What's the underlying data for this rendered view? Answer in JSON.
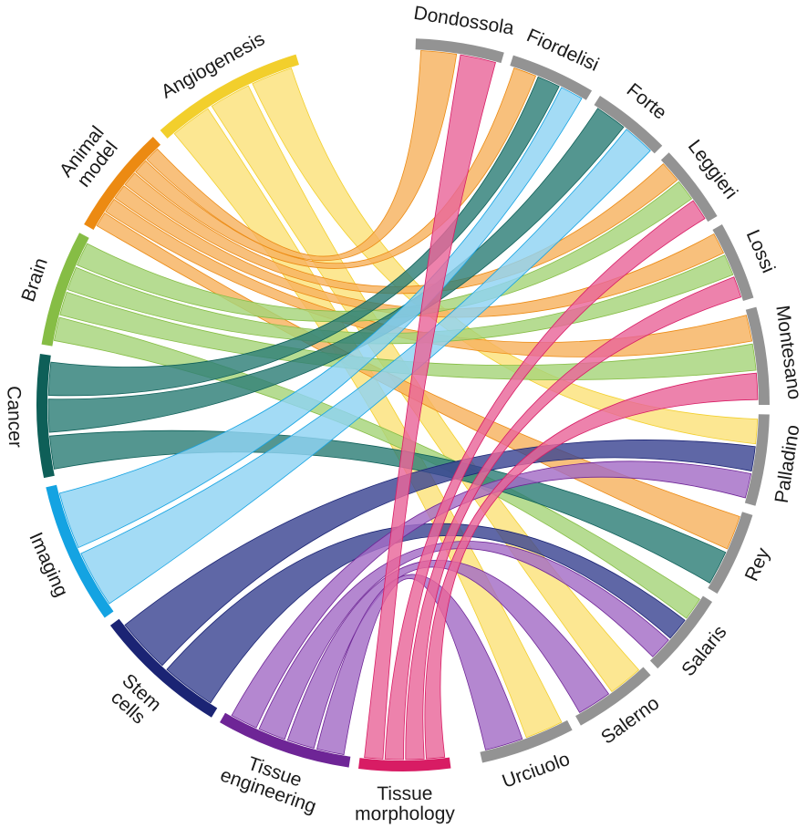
{
  "chart_data": {
    "type": "chord",
    "title": "",
    "topics": [
      {
        "id": "angio",
        "lines": [
          "Angiogenesis"
        ],
        "color": "#f2cf2c",
        "ribbon": "#fbe27a"
      },
      {
        "id": "animal",
        "lines": [
          "Animal",
          "model"
        ],
        "color": "#ec8a12",
        "ribbon": "#f6b25f"
      },
      {
        "id": "brain",
        "lines": [
          "Brain"
        ],
        "color": "#86bd45",
        "ribbon": "#a6d47a"
      },
      {
        "id": "cancer",
        "lines": [
          "Cancer"
        ],
        "color": "#0e5f58",
        "ribbon": "#2e7f77"
      },
      {
        "id": "imaging",
        "lines": [
          "Imaging"
        ],
        "color": "#14a3e2",
        "ribbon": "#8fd3f3"
      },
      {
        "id": "stem",
        "lines": [
          "Stem",
          "cells"
        ],
        "color": "#1b2474",
        "ribbon": "#3c4593"
      },
      {
        "id": "tissue_eng",
        "lines": [
          "Tissue",
          "engineering"
        ],
        "color": "#6e2596",
        "ribbon": "#a46cc6"
      },
      {
        "id": "tissue_morph",
        "lines": [
          "Tissue",
          "morphology"
        ],
        "color": "#d81c64",
        "ribbon": "#e9679a"
      }
    ],
    "authors": [
      "Dondossola",
      "Fiordelisi",
      "Forte",
      "Leggieri",
      "Lossi",
      "Montesano",
      "Palladino",
      "Rey",
      "Salaris",
      "Salerno",
      "Urciuolo"
    ],
    "author_color": "#939393",
    "links": [
      {
        "topic": "angio",
        "author": "Salerno"
      },
      {
        "topic": "angio",
        "author": "Urciuolo"
      },
      {
        "topic": "angio",
        "author": "Palladino"
      },
      {
        "topic": "animal",
        "author": "Dondossola"
      },
      {
        "topic": "animal",
        "author": "Fiordelisi"
      },
      {
        "topic": "animal",
        "author": "Leggieri"
      },
      {
        "topic": "animal",
        "author": "Lossi"
      },
      {
        "topic": "animal",
        "author": "Montesano"
      },
      {
        "topic": "animal",
        "author": "Rey"
      },
      {
        "topic": "brain",
        "author": "Leggieri"
      },
      {
        "topic": "brain",
        "author": "Lossi"
      },
      {
        "topic": "brain",
        "author": "Montesano"
      },
      {
        "topic": "brain",
        "author": "Salaris"
      },
      {
        "topic": "cancer",
        "author": "Fiordelisi"
      },
      {
        "topic": "cancer",
        "author": "Forte"
      },
      {
        "topic": "cancer",
        "author": "Rey"
      },
      {
        "topic": "imaging",
        "author": "Fiordelisi"
      },
      {
        "topic": "imaging",
        "author": "Forte"
      },
      {
        "topic": "stem",
        "author": "Palladino"
      },
      {
        "topic": "stem",
        "author": "Salaris"
      },
      {
        "topic": "tissue_eng",
        "author": "Palladino"
      },
      {
        "topic": "tissue_eng",
        "author": "Salaris"
      },
      {
        "topic": "tissue_eng",
        "author": "Salerno"
      },
      {
        "topic": "tissue_eng",
        "author": "Urciuolo"
      },
      {
        "topic": "tissue_morph",
        "author": "Dondossola"
      },
      {
        "topic": "tissue_morph",
        "author": "Leggieri"
      },
      {
        "topic": "tissue_morph",
        "author": "Lossi"
      },
      {
        "topic": "tissue_morph",
        "author": "Montesano"
      }
    ]
  }
}
